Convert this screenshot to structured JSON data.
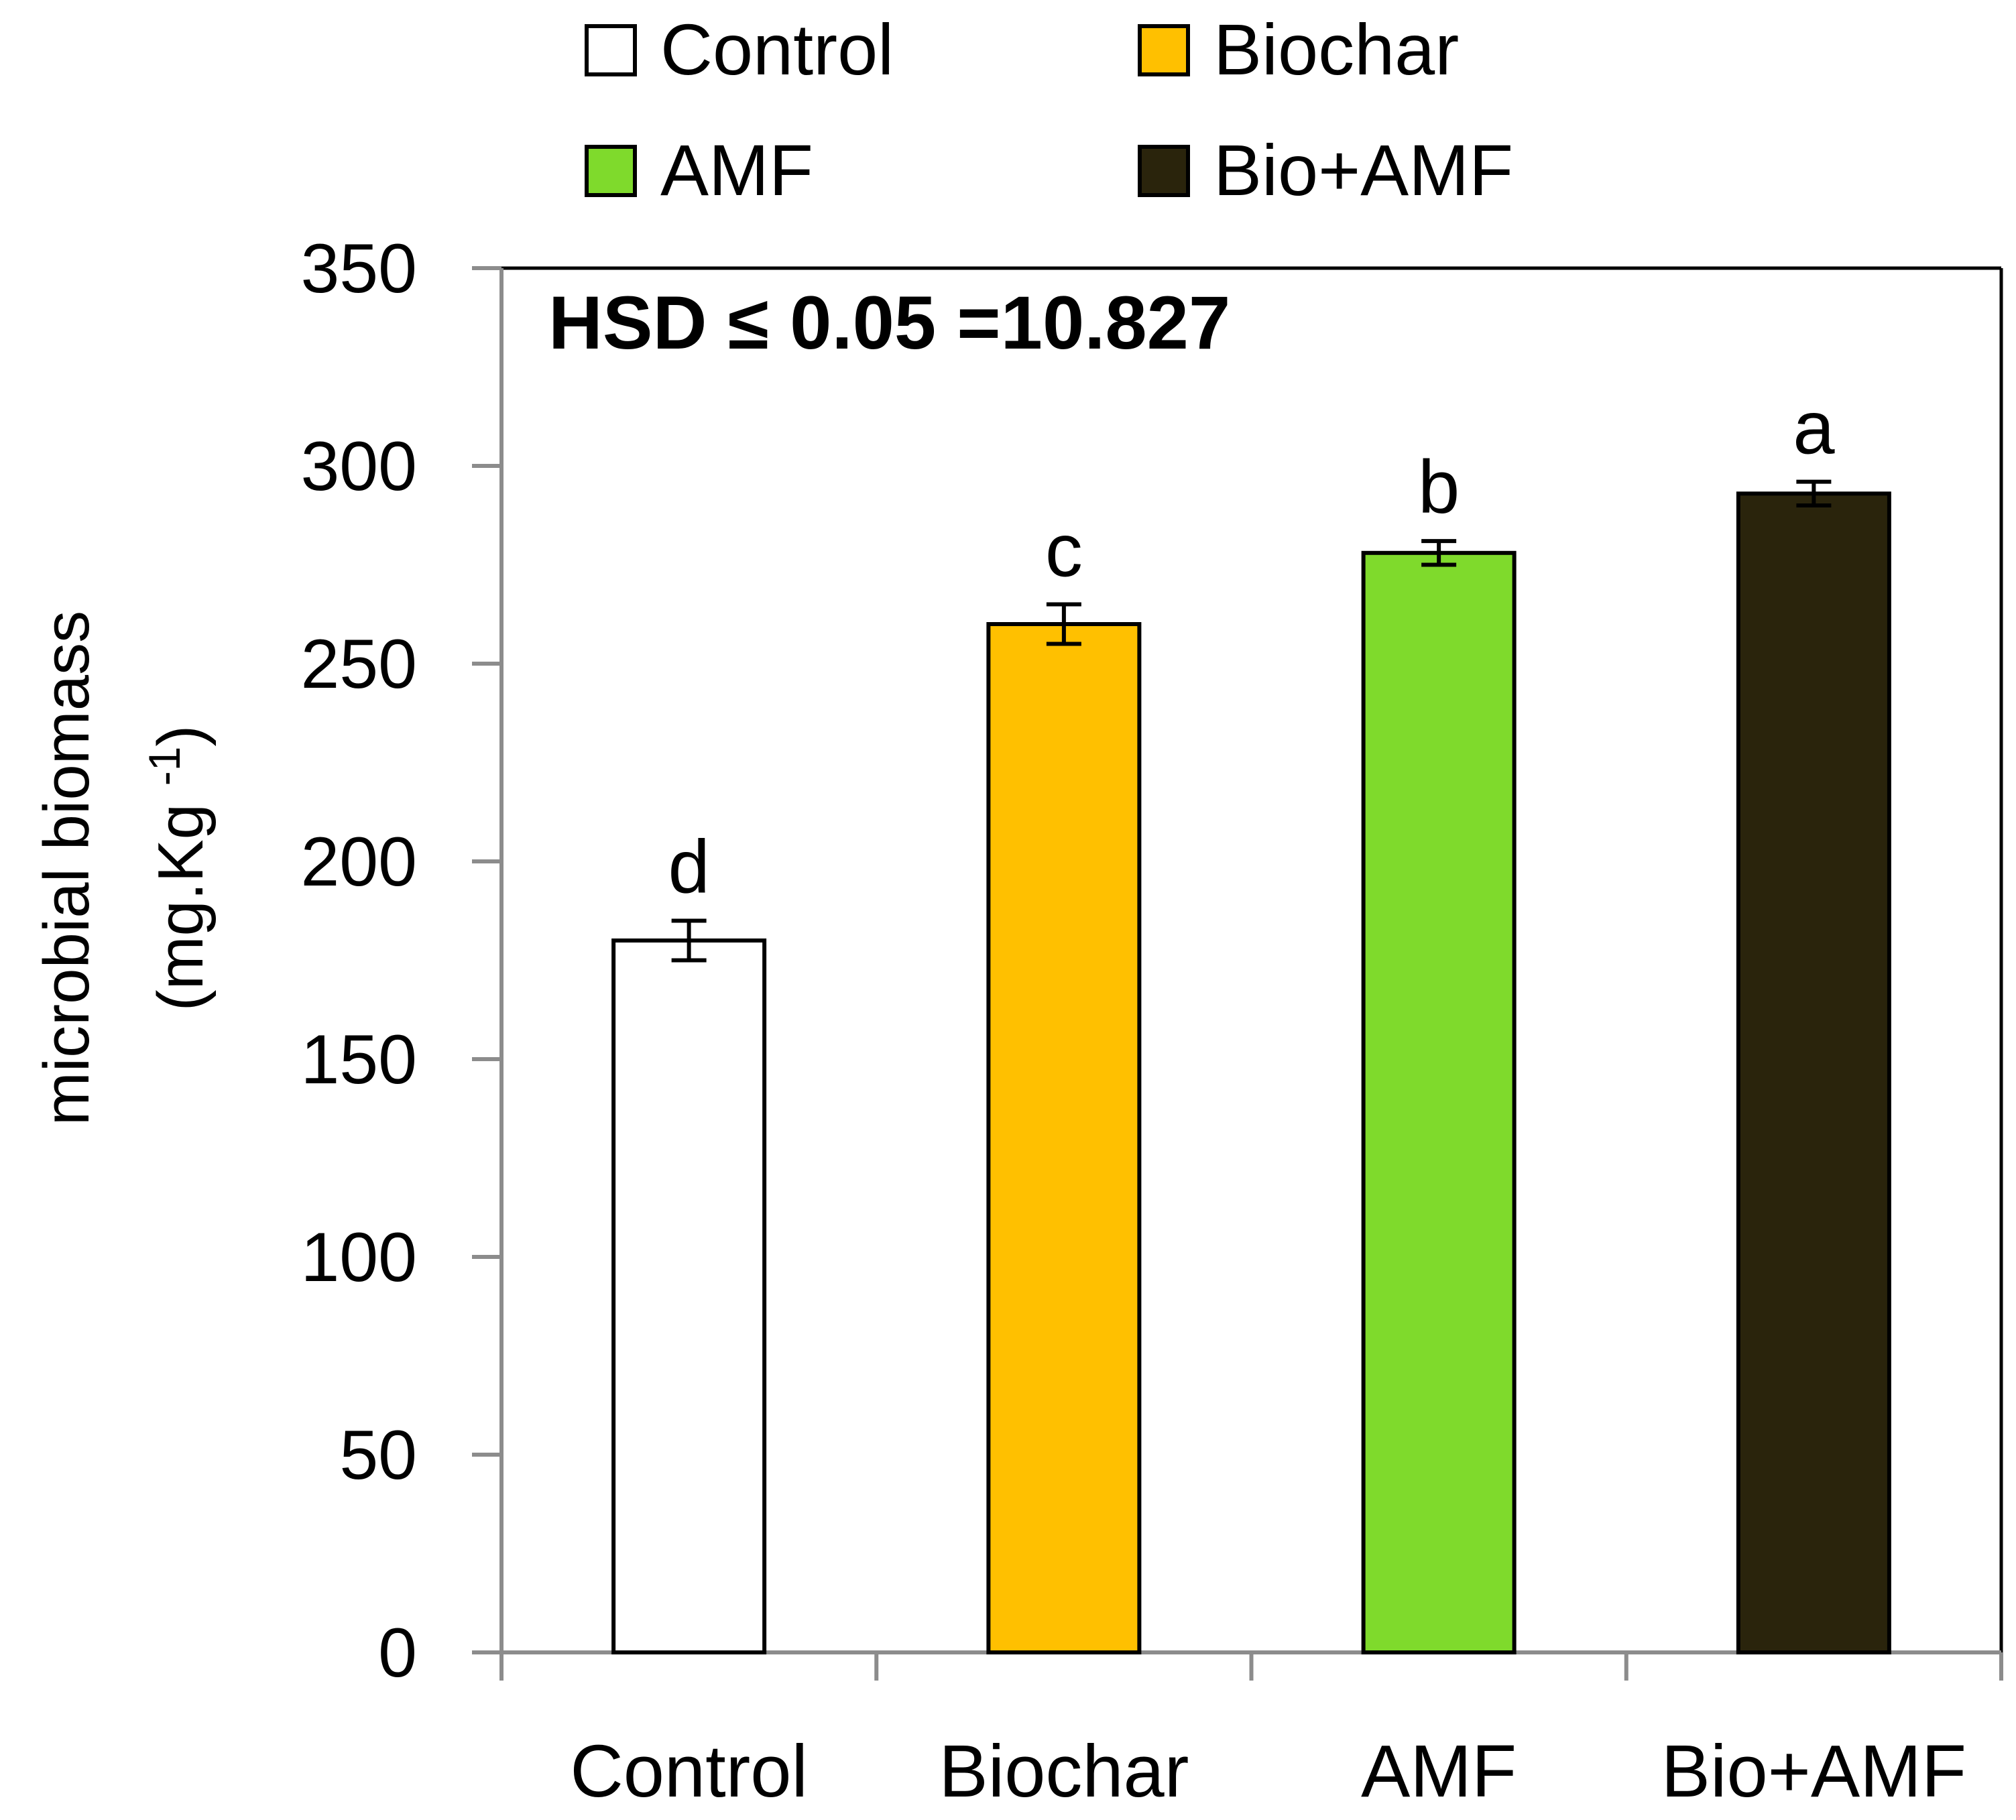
{
  "chart_data": {
    "type": "bar",
    "title": "",
    "xlabel": "",
    "ylabel_lines": [
      "microbial biomass",
      "(mg.Kg"
    ],
    "ylabel_superscript": "-1",
    "ylabel_close": ")",
    "ylim": [
      0,
      350
    ],
    "yticks": [
      0,
      50,
      100,
      150,
      200,
      250,
      300,
      350
    ],
    "categories": [
      "Control",
      "Biochar",
      "AMF",
      "Bio+AMF"
    ],
    "values": [
      180,
      260,
      278,
      293
    ],
    "errors": [
      5,
      5,
      3,
      3
    ],
    "significance_letters": [
      "d",
      "c",
      "b",
      "a"
    ],
    "colors": [
      "#ffffff",
      "#ffc000",
      "#7fda2c",
      "#2a240c"
    ],
    "annotation": "HSD ≤ 0.05 =10.827",
    "legend": [
      {
        "label": "Control",
        "color": "#ffffff"
      },
      {
        "label": "Biochar",
        "color": "#ffc000"
      },
      {
        "label": "AMF",
        "color": "#7fda2c"
      },
      {
        "label": "Bio+AMF",
        "color": "#2a240c"
      }
    ],
    "legend_position": "top-center",
    "grid": false
  }
}
